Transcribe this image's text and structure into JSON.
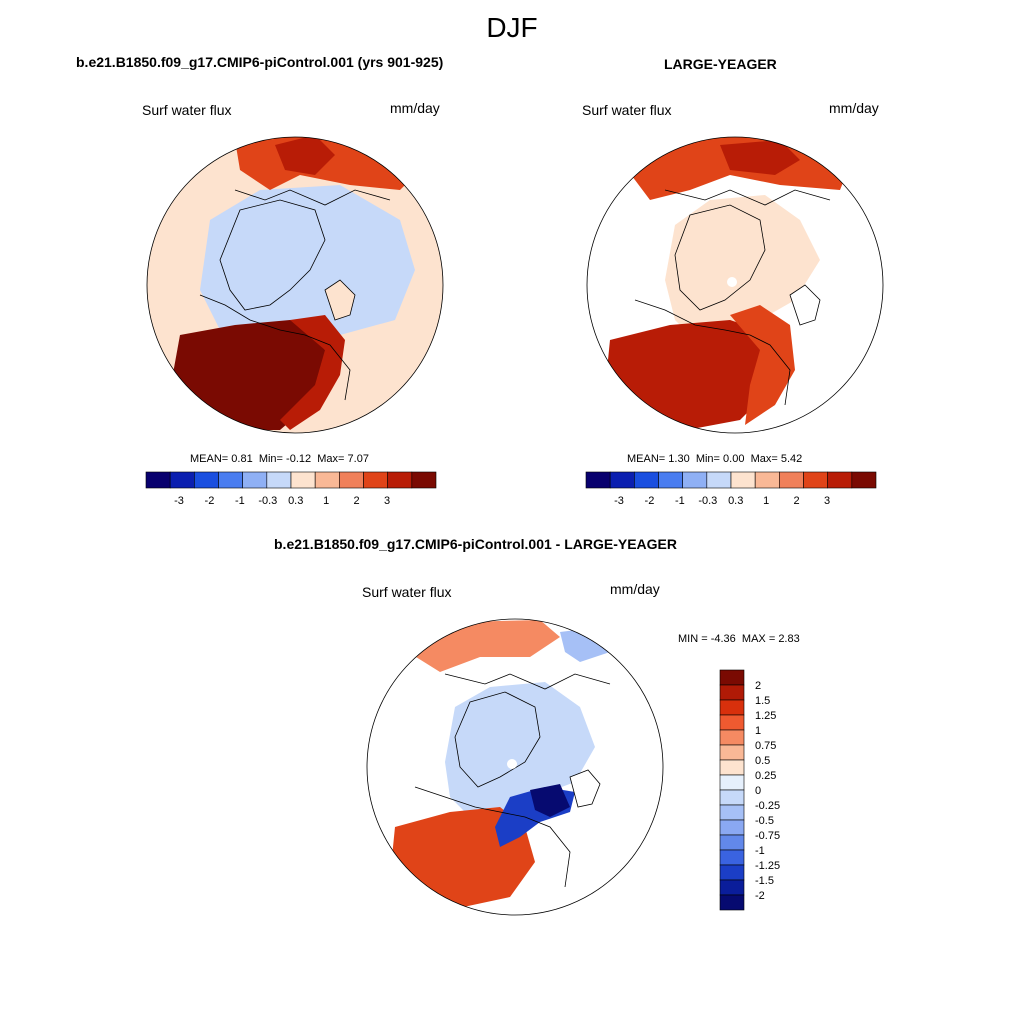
{
  "season": "DJF",
  "panels": [
    {
      "title": "b.e21.B1850.f09_g17.CMIP6-piControl.001 (yrs 901-925)",
      "variable": "Surf water flux",
      "units": "mm/day",
      "stats": {
        "mean_label": "MEAN=",
        "mean": "0.81",
        "min_label": "Min=",
        "min": "-0.12",
        "max_label": "Max=",
        "max": "7.07"
      },
      "colorbar_ticks": [
        "-3",
        "-2",
        "-1",
        "-0.3",
        "0.3",
        "1",
        "2",
        "3"
      ]
    },
    {
      "title": "LARGE-YEAGER",
      "variable": "Surf water flux",
      "units": "mm/day",
      "stats": {
        "mean_label": "MEAN=",
        "mean": "1.30",
        "min_label": "Min=",
        "min": "0.00",
        "max_label": "Max=",
        "max": "5.42"
      },
      "colorbar_ticks": [
        "-3",
        "-2",
        "-1",
        "-0.3",
        "0.3",
        "1",
        "2",
        "3"
      ]
    },
    {
      "title": "b.e21.B1850.f09_g17.CMIP6-piControl.001 - LARGE-YEAGER",
      "variable": "Surf water flux",
      "units": "mm/day",
      "stats": {
        "min_label": "MIN =",
        "min": "-4.36",
        "max_label": "MAX =",
        "max": "2.83"
      },
      "colorbar_ticks": [
        "2",
        "1.5",
        "1.25",
        "1",
        "0.75",
        "0.5",
        "0.25",
        "0",
        "-0.25",
        "-0.5",
        "-0.75",
        "-1",
        "-1.25",
        "-1.5",
        "-2"
      ]
    }
  ],
  "colors": {
    "abs_scale": [
      "#08006e",
      "#0b1fb0",
      "#1a4fe0",
      "#4a7df0",
      "#8fb0f5",
      "#c6d9f9",
      "#fde3cf",
      "#f9b896",
      "#f0805a",
      "#e04418",
      "#b81c06",
      "#7a0a02"
    ],
    "diff_scale": [
      "#7a0a02",
      "#b01a06",
      "#d8300c",
      "#ef5a30",
      "#f58a62",
      "#f9b896",
      "#fde3cf",
      "#e6f0fc",
      "#c6d9f9",
      "#a6c0f6",
      "#8aa8f2",
      "#6288ea",
      "#3a63e0",
      "#1b3ec6",
      "#0a1d9a",
      "#060a70"
    ],
    "land": "#ffffff",
    "coast": "#000000"
  }
}
